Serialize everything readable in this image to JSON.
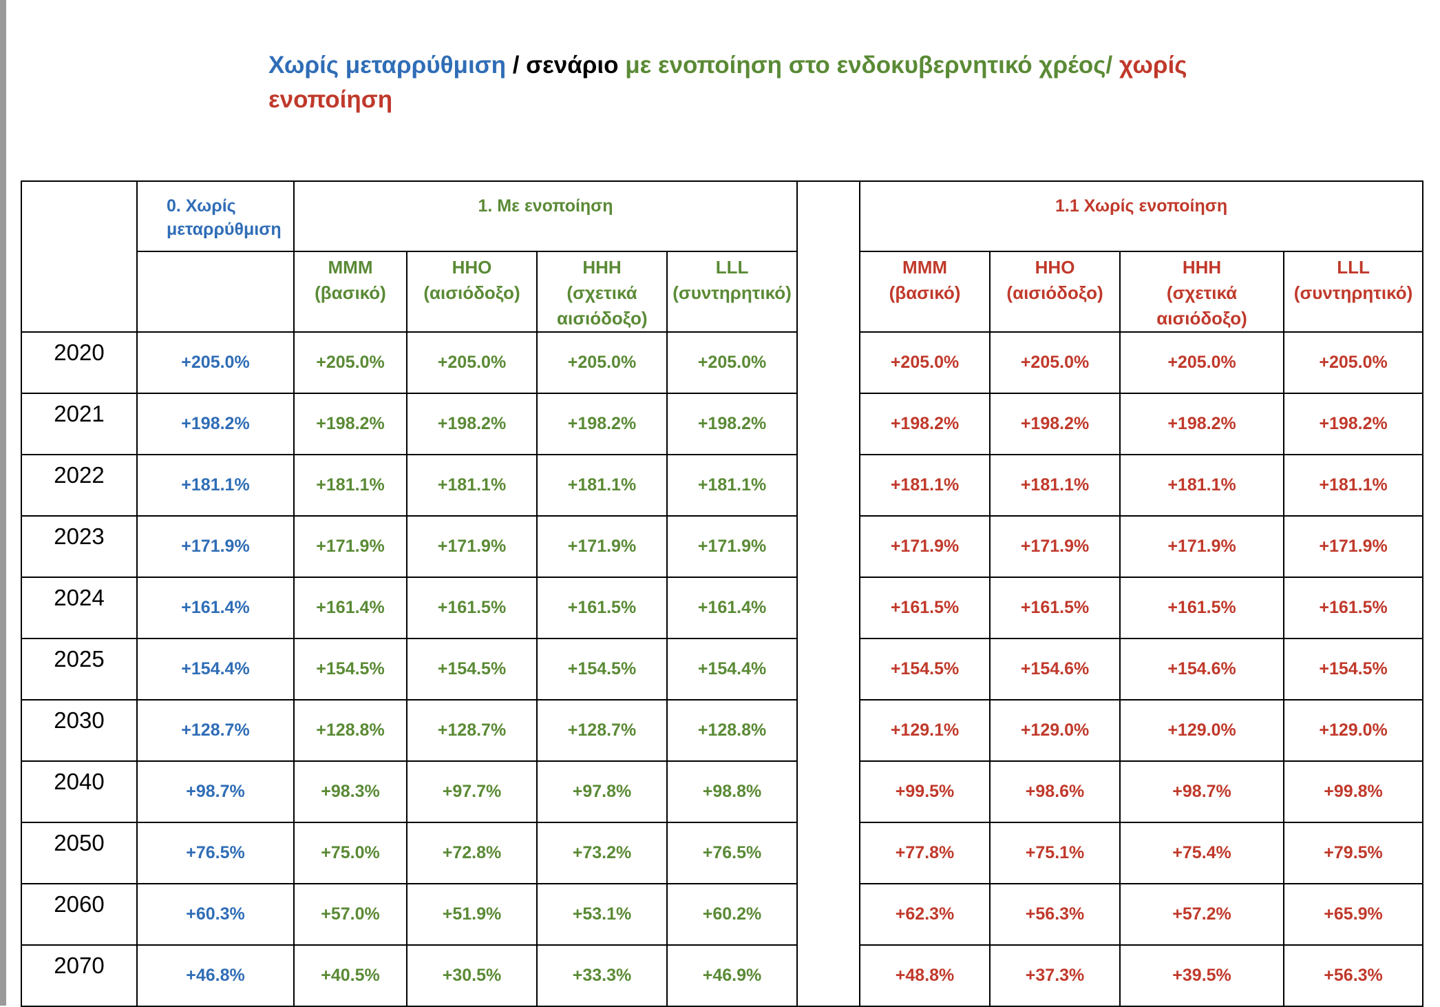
{
  "title": {
    "part1": "Χωρίς μεταρρύθμιση",
    "part2": " / σενάριο ",
    "part3": "με ενοποίηση στο ενδοκυβερνητικό χρέος/",
    "part4": " χωρίς ενοποίηση"
  },
  "colors": {
    "blue": "#2f6db6",
    "green": "#5a8a35",
    "red": "#c0392b",
    "black": "#000000"
  },
  "table": {
    "group_no_reform": "0. Χωρίς μεταρρύθμιση",
    "group_consolidation": "1. Με ενοποίηση",
    "group_no_consolidation": "1.1 Χωρίς ενοποίηση",
    "sub_headers": [
      {
        "code": "MMM",
        "desc": "(βασικό)"
      },
      {
        "code": "HHO",
        "desc": "(αισιόδοξο)"
      },
      {
        "code": "HHH",
        "desc": "(σχετικά αισιόδοξο)"
      },
      {
        "code": "LLL",
        "desc": "(συντηρητικό)"
      }
    ],
    "rows": [
      {
        "year": "2020",
        "no_reform": "+205.0%",
        "cons": [
          "+205.0%",
          "+205.0%",
          "+205.0%",
          "+205.0%"
        ],
        "nocons": [
          "+205.0%",
          "+205.0%",
          "+205.0%",
          "+205.0%"
        ]
      },
      {
        "year": "2021",
        "no_reform": "+198.2%",
        "cons": [
          "+198.2%",
          "+198.2%",
          "+198.2%",
          "+198.2%"
        ],
        "nocons": [
          "+198.2%",
          "+198.2%",
          "+198.2%",
          "+198.2%"
        ]
      },
      {
        "year": "2022",
        "no_reform": "+181.1%",
        "cons": [
          "+181.1%",
          "+181.1%",
          "+181.1%",
          "+181.1%"
        ],
        "nocons": [
          "+181.1%",
          "+181.1%",
          "+181.1%",
          "+181.1%"
        ]
      },
      {
        "year": "2023",
        "no_reform": "+171.9%",
        "cons": [
          "+171.9%",
          "+171.9%",
          "+171.9%",
          "+171.9%"
        ],
        "nocons": [
          "+171.9%",
          "+171.9%",
          "+171.9%",
          "+171.9%"
        ]
      },
      {
        "year": "2024",
        "no_reform": "+161.4%",
        "cons": [
          "+161.4%",
          "+161.5%",
          "+161.5%",
          "+161.4%"
        ],
        "nocons": [
          "+161.5%",
          "+161.5%",
          "+161.5%",
          "+161.5%"
        ]
      },
      {
        "year": "2025",
        "no_reform": "+154.4%",
        "cons": [
          "+154.5%",
          "+154.5%",
          "+154.5%",
          "+154.4%"
        ],
        "nocons": [
          "+154.5%",
          "+154.6%",
          "+154.6%",
          "+154.5%"
        ]
      },
      {
        "year": "2030",
        "no_reform": "+128.7%",
        "cons": [
          "+128.8%",
          "+128.7%",
          "+128.7%",
          "+128.8%"
        ],
        "nocons": [
          "+129.1%",
          "+129.0%",
          "+129.0%",
          "+129.0%"
        ]
      },
      {
        "year": "2040",
        "no_reform": "+98.7%",
        "cons": [
          "+98.3%",
          "+97.7%",
          "+97.8%",
          "+98.8%"
        ],
        "nocons": [
          "+99.5%",
          "+98.6%",
          "+98.7%",
          "+99.8%"
        ]
      },
      {
        "year": "2050",
        "no_reform": "+76.5%",
        "cons": [
          "+75.0%",
          "+72.8%",
          "+73.2%",
          "+76.5%"
        ],
        "nocons": [
          "+77.8%",
          "+75.1%",
          "+75.4%",
          "+79.5%"
        ]
      },
      {
        "year": "2060",
        "no_reform": "+60.3%",
        "cons": [
          "+57.0%",
          "+51.9%",
          "+53.1%",
          "+60.2%"
        ],
        "nocons": [
          "+62.3%",
          "+56.3%",
          "+57.2%",
          "+65.9%"
        ]
      },
      {
        "year": "2070",
        "no_reform": "+46.8%",
        "cons": [
          "+40.5%",
          "+30.5%",
          "+33.3%",
          "+46.9%"
        ],
        "nocons": [
          "+48.8%",
          "+37.3%",
          "+39.5%",
          "+56.3%"
        ]
      }
    ]
  }
}
